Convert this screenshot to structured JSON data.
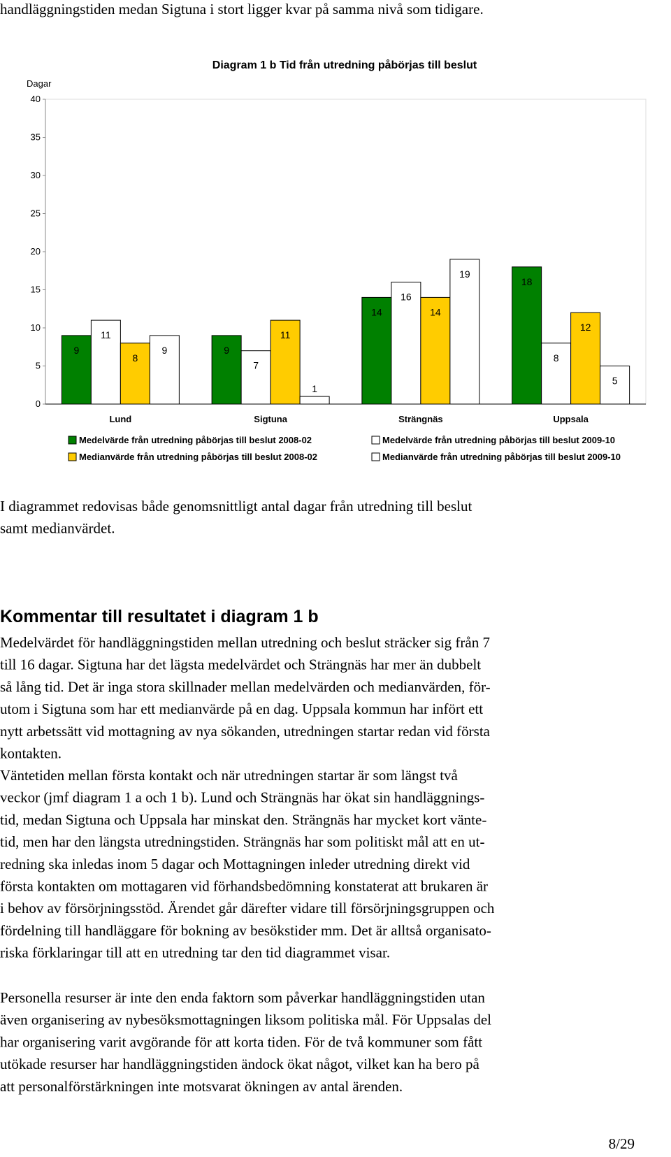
{
  "intro_line": "handläggningstiden medan Sigtuna i stort ligger kvar på samma nivå som tidigare.",
  "chart_data": {
    "type": "bar",
    "title": "Diagram 1 b Tid från utredning påbörjas till beslut",
    "y_label": "Dagar",
    "categories": [
      "Lund",
      "Sigtuna",
      "Strängnäs",
      "Uppsala"
    ],
    "series": [
      {
        "name": "Medelvärde från utredning påbörjas till beslut 2008-02",
        "color": "#008000",
        "values": [
          9,
          9,
          14,
          18
        ]
      },
      {
        "name": "Medelvärde från utredning påbörjas till beslut 2009-10",
        "color": "#ffffff",
        "values": [
          11,
          7,
          16,
          8
        ]
      },
      {
        "name": "Medianvärde från utredning påbörjas till beslut 2008-02",
        "color": "#ffcc00",
        "values": [
          8,
          11,
          14,
          12
        ]
      },
      {
        "name": "Medianvärde från utredning påbörjas till beslut 2009-10",
        "color": "#ffffff",
        "values": [
          9,
          1,
          19,
          5
        ]
      }
    ],
    "ylim": [
      0,
      40
    ],
    "yticks": [
      0,
      5,
      10,
      15,
      20,
      25,
      30,
      35,
      40
    ],
    "grid": false
  },
  "paragraph1": [
    "I diagrammet redovisas både genomsnittligt antal dagar från utredning till beslut",
    "samt medianvärdet."
  ],
  "heading": "Kommentar till resultatet i diagram 1 b",
  "paragraph2": [
    "Medelvärdet för handläggningstiden mellan utredning och beslut sträcker sig från 7",
    "till 16 dagar. Sigtuna har det lägsta medelvärdet och Strängnäs har mer än dubbelt",
    "så lång tid. Det är inga stora skillnader mellan medelvärden och medianvärden, för-",
    "utom i Sigtuna som har ett medianvärde på en dag. Uppsala kommun har infört ett",
    "nytt arbetssätt vid mottagning av nya sökanden, utredningen startar redan vid första",
    "kontakten."
  ],
  "paragraph3": [
    "Väntetiden mellan första kontakt och när utredningen startar är som längst två",
    "veckor (jmf diagram 1 a och 1 b). Lund och Strängnäs har ökat sin handläggnings-",
    "tid, medan Sigtuna och Uppsala har minskat den. Strängnäs har mycket kort vänte-",
    "tid, men har den längsta utredningstiden. Strängnäs har som politiskt mål att en ut-",
    "redning ska inledas inom 5 dagar och Mottagningen inleder utredning direkt vid",
    "första kontakten om mottagaren vid förhandsbedömning konstaterat att brukaren är",
    "i behov av försörjningsstöd. Ärendet går därefter vidare till försörjningsgruppen och",
    "fördelning till handläggare för bokning av besökstider mm. Det är alltså organisato-",
    "riska förklaringar till att en utredning tar den tid diagrammet visar."
  ],
  "paragraph4": [
    "Personella resurser är inte den enda faktorn som påverkar handläggningstiden utan",
    "även organisering av nybesöksmottagningen liksom politiska mål. För Uppsalas del",
    "har organisering varit avgörande för att korta tiden. För de två kommuner som fått",
    "utökade resurser har handläggningstiden ändock ökat något, vilket kan ha bero på",
    "att personalförstärkningen inte motsvarat ökningen av antal ärenden."
  ],
  "page_number": "8/29"
}
